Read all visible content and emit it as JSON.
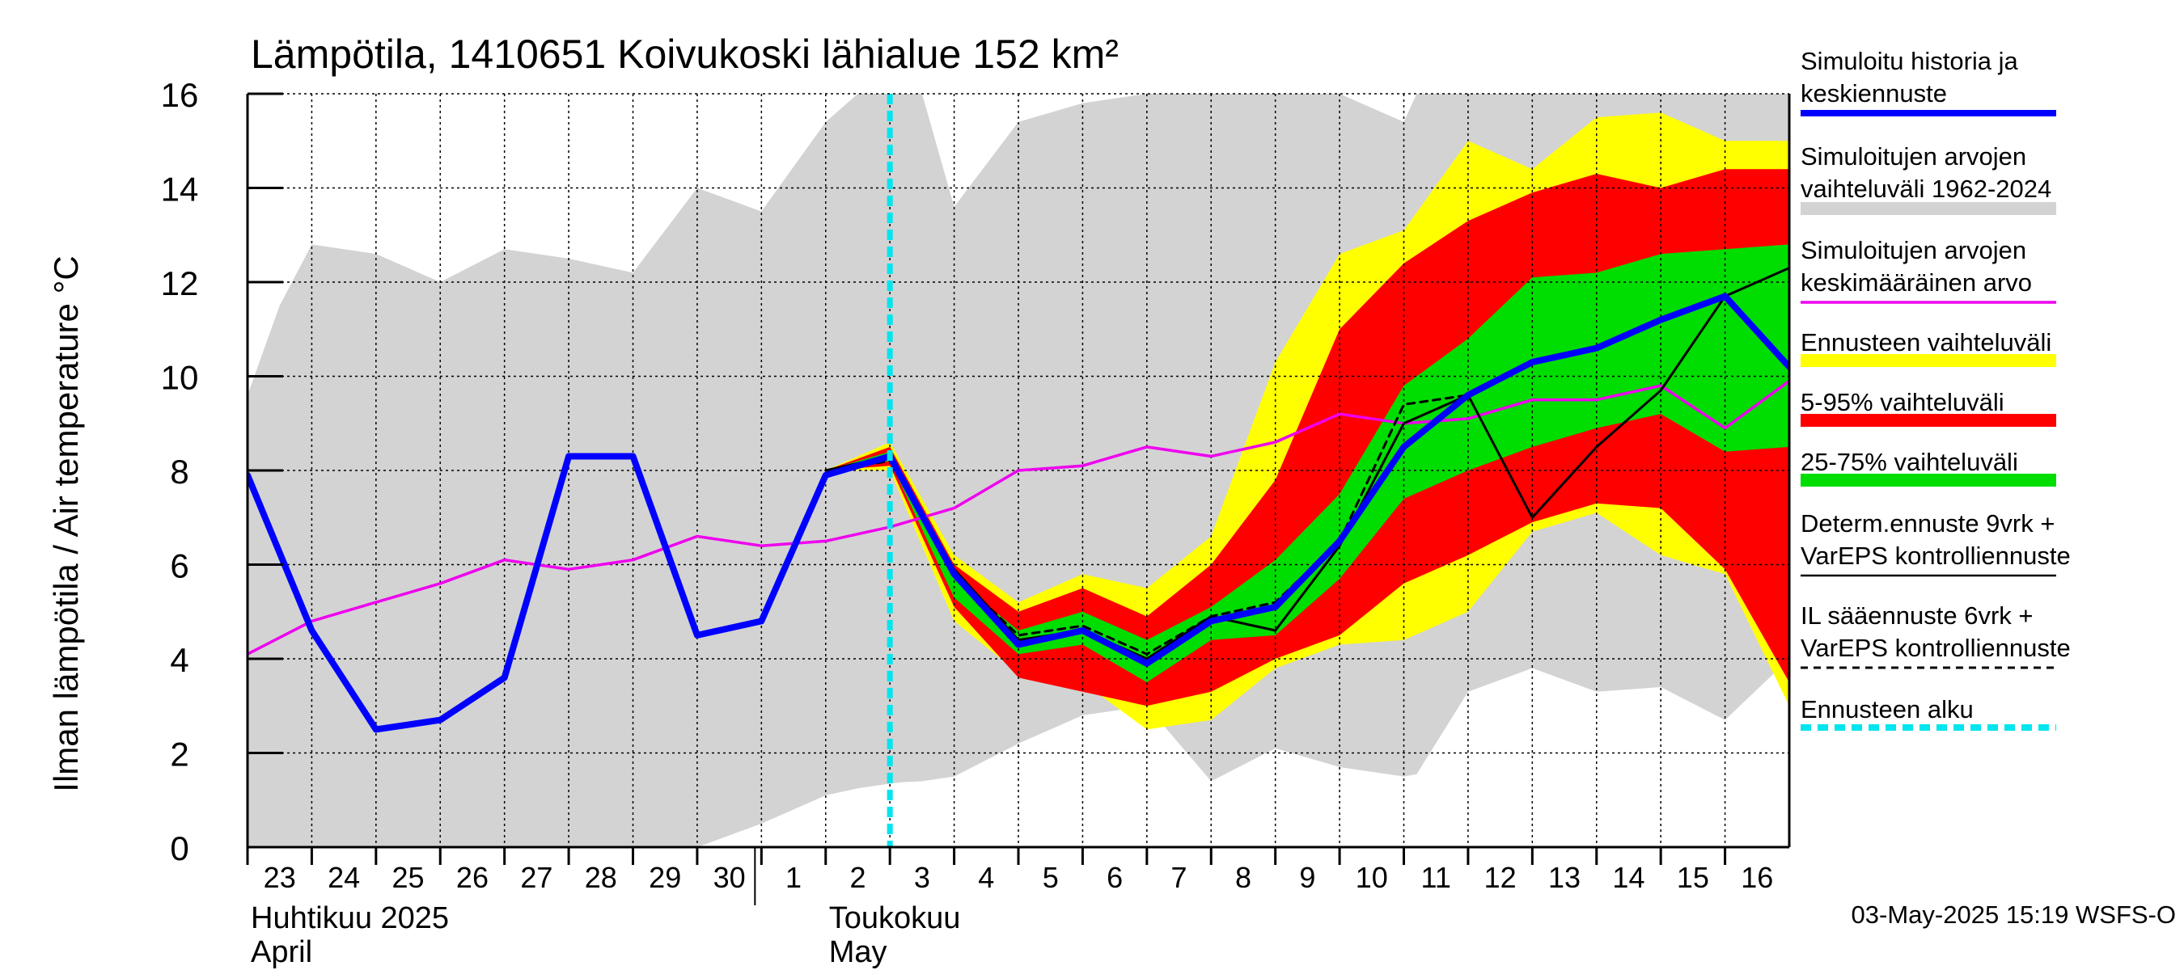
{
  "chart_data": {
    "type": "line",
    "title": "Lämpötila, 1410651 Koivukoski lähialue 152 km²",
    "ylabel": "Ilman lämpötila / Air temperature   °C",
    "ylim": [
      0,
      16
    ],
    "yticks": [
      0,
      2,
      4,
      6,
      8,
      10,
      12,
      14,
      16
    ],
    "grid": true,
    "xlim": [
      0,
      24
    ],
    "x_ticks": [
      {
        "x": 0,
        "label": "23"
      },
      {
        "x": 1,
        "label": "24"
      },
      {
        "x": 2,
        "label": "25"
      },
      {
        "x": 3,
        "label": "26"
      },
      {
        "x": 4,
        "label": "27"
      },
      {
        "x": 5,
        "label": "28"
      },
      {
        "x": 6,
        "label": "29"
      },
      {
        "x": 7,
        "label": "30"
      },
      {
        "x": 8,
        "label": "1"
      },
      {
        "x": 9,
        "label": "2"
      },
      {
        "x": 10,
        "label": "3"
      },
      {
        "x": 11,
        "label": "4"
      },
      {
        "x": 12,
        "label": "5"
      },
      {
        "x": 13,
        "label": "6"
      },
      {
        "x": 14,
        "label": "7"
      },
      {
        "x": 15,
        "label": "8"
      },
      {
        "x": 16,
        "label": "9"
      },
      {
        "x": 17,
        "label": "10"
      },
      {
        "x": 18,
        "label": "11"
      },
      {
        "x": 19,
        "label": "12"
      },
      {
        "x": 20,
        "label": "13"
      },
      {
        "x": 21,
        "label": "14"
      },
      {
        "x": 22,
        "label": "15"
      },
      {
        "x": 23,
        "label": "16"
      }
    ],
    "month_separator_x": 8,
    "months": [
      {
        "x": 0,
        "line1": "Huhtikuu  2025",
        "line2": "April"
      },
      {
        "x": 9,
        "line1": "Toukokuu",
        "line2": "May"
      }
    ],
    "forecast_start_x": 10,
    "bands": [
      {
        "name": "Simuloitujen arvojen vaihteluväli 1962-2024",
        "color": "#d3d3d3",
        "x": [
          0,
          0.5,
          1,
          2,
          3,
          4,
          5,
          6,
          7,
          8,
          9,
          9.5,
          10,
          10.2,
          10.5,
          11,
          12,
          13,
          14,
          15,
          16,
          17,
          18,
          18.2,
          19,
          20,
          21,
          22,
          23,
          24
        ],
        "upper": [
          9.6,
          11.5,
          12.8,
          12.6,
          12.0,
          12.7,
          12.5,
          12.2,
          14.0,
          13.5,
          15.4,
          16.0,
          16.0,
          16.0,
          16.0,
          13.6,
          15.4,
          15.8,
          16.0,
          16.0,
          16.0,
          16.0,
          15.4,
          16.0,
          16.0,
          16.0,
          16.0,
          16.0,
          16.0,
          16.0
        ],
        "lower": [
          0,
          0,
          0,
          0,
          0,
          0,
          0,
          0,
          0,
          0.5,
          1.1,
          1.25,
          1.35,
          1.38,
          1.4,
          1.5,
          2.2,
          2.8,
          3.0,
          1.4,
          2.1,
          1.7,
          1.5,
          1.55,
          3.3,
          3.8,
          3.3,
          3.4,
          2.7,
          4.0
        ]
      },
      {
        "name": "Ennusteen vaihteluväli",
        "color": "#ffff00",
        "x": [
          9,
          10,
          11,
          12,
          13,
          14,
          15,
          16,
          17,
          18,
          19,
          20,
          21,
          22,
          23,
          24
        ],
        "upper": [
          8.0,
          8.6,
          6.2,
          5.2,
          5.8,
          5.5,
          6.6,
          10.3,
          12.6,
          13.1,
          15.0,
          14.4,
          15.5,
          15.6,
          15.0,
          15.0
        ],
        "lower": [
          8.0,
          8.0,
          4.8,
          3.7,
          3.5,
          2.5,
          2.7,
          3.8,
          4.3,
          4.4,
          5.0,
          6.7,
          7.1,
          6.2,
          5.8,
          3.0
        ]
      },
      {
        "name": "5-95% vaihteluväli",
        "color": "#ff0000",
        "x": [
          9,
          10,
          11,
          12,
          13,
          14,
          15,
          16,
          17,
          18,
          19,
          20,
          21,
          22,
          23,
          24
        ],
        "upper": [
          8.0,
          8.5,
          6.0,
          5.0,
          5.5,
          4.9,
          6.0,
          7.8,
          11.0,
          12.4,
          13.3,
          13.9,
          14.3,
          14.0,
          14.4,
          14.4
        ],
        "lower": [
          8.0,
          8.1,
          5.1,
          3.6,
          3.3,
          3.0,
          3.3,
          4.0,
          4.5,
          5.6,
          6.2,
          6.9,
          7.3,
          7.2,
          5.9,
          3.5
        ]
      },
      {
        "name": "25-75% vaihteluväli",
        "color": "#00dd00",
        "x": [
          9,
          10,
          11,
          12,
          13,
          14,
          15,
          16,
          17,
          18,
          19,
          20,
          21,
          22,
          23,
          24
        ],
        "upper": [
          8.0,
          8.4,
          5.7,
          4.6,
          5.0,
          4.4,
          5.1,
          6.1,
          7.5,
          9.8,
          10.8,
          12.1,
          12.2,
          12.6,
          12.7,
          12.8
        ],
        "lower": [
          8.0,
          8.2,
          5.3,
          4.1,
          4.3,
          3.5,
          4.4,
          4.5,
          5.7,
          7.4,
          8.0,
          8.5,
          8.9,
          9.2,
          8.4,
          8.5
        ]
      }
    ],
    "series": [
      {
        "name": "Simuloitujen arvojen keskimääräinen arvo",
        "color": "#ee00ee",
        "x": [
          0,
          1,
          2,
          3,
          4,
          5,
          6,
          7,
          8,
          9,
          10,
          11,
          12,
          13,
          14,
          15,
          16,
          17,
          18,
          19,
          20,
          21,
          22,
          23,
          24
        ],
        "values": [
          4.1,
          4.8,
          5.2,
          5.6,
          6.1,
          5.9,
          6.1,
          6.6,
          6.4,
          6.5,
          6.8,
          7.2,
          8.0,
          8.1,
          8.5,
          8.3,
          8.6,
          9.2,
          9.0,
          9.1,
          9.5,
          9.5,
          9.8,
          8.9,
          9.9
        ]
      },
      {
        "name": "IL sääennuste 6vrk + VarEPS kontrolliennuste",
        "color": "#000000",
        "dash": "dashed",
        "x": [
          9,
          10,
          11,
          12,
          13,
          14,
          15,
          16,
          17,
          18,
          19
        ],
        "values": [
          8.0,
          8.2,
          5.8,
          4.5,
          4.7,
          4.1,
          4.9,
          5.2,
          6.5,
          9.4,
          9.6
        ]
      },
      {
        "name": "Determ.ennuste 9vrk + VarEPS kontrolliennuste",
        "color": "#000000",
        "x": [
          9,
          10,
          11,
          12,
          13,
          14,
          15,
          16,
          17,
          18,
          19,
          20,
          21,
          22,
          23,
          24
        ],
        "values": [
          8.0,
          8.3,
          5.9,
          4.4,
          4.6,
          4.0,
          4.9,
          4.6,
          6.4,
          9.0,
          9.6,
          7.0,
          8.5,
          9.7,
          11.7,
          12.3
        ]
      },
      {
        "name": "Simuloitu historia ja keskiennuste",
        "color": "#0000ff",
        "x": [
          0,
          1,
          2,
          3,
          4,
          5,
          5.5,
          6,
          7,
          8,
          9,
          10,
          11,
          12,
          13,
          14,
          15,
          16,
          17,
          18,
          19,
          20,
          21,
          22,
          23,
          24
        ],
        "values": [
          7.9,
          4.6,
          2.5,
          2.7,
          3.6,
          8.3,
          8.3,
          8.3,
          4.5,
          4.8,
          7.9,
          8.3,
          5.8,
          4.3,
          4.6,
          3.9,
          4.8,
          5.1,
          6.5,
          8.5,
          9.6,
          10.3,
          10.6,
          11.2,
          11.7,
          10.2
        ]
      }
    ],
    "legend": {
      "placement": "right",
      "items": [
        {
          "line1": "Simuloitu historia ja",
          "line2": "keskiennuste",
          "color": "#0000ff",
          "kind": "thick"
        },
        {
          "line1": "Simuloitujen arvojen",
          "line2": "vaihteluväli 1962-2024",
          "color": "#d3d3d3",
          "kind": "band"
        },
        {
          "line1": "Simuloitujen arvojen",
          "line2": "keskimääräinen arvo",
          "color": "#ee00ee",
          "kind": "thin"
        },
        {
          "line1": "Ennusteen vaihteluväli",
          "line2": "",
          "color": "#ffff00",
          "kind": "band"
        },
        {
          "line1": "5-95% vaihteluväli",
          "line2": "",
          "color": "#ff0000",
          "kind": "band"
        },
        {
          "line1": "25-75% vaihteluväli",
          "line2": "",
          "color": "#00dd00",
          "kind": "band"
        },
        {
          "line1": "Determ.ennuste 9vrk +",
          "line2": "VarEPS kontrolliennuste",
          "color": "#000000",
          "kind": "line"
        },
        {
          "line1": "IL sääennuste 6vrk  +",
          "line2": "  VarEPS kontrolliennuste",
          "color": "#000000",
          "kind": "dashed"
        },
        {
          "line1": "Ennusteen alku",
          "line2": "",
          "color": "#00e5ee",
          "kind": "forecast"
        }
      ]
    },
    "timestamp": "03-May-2025 15:19 WSFS-O"
  }
}
